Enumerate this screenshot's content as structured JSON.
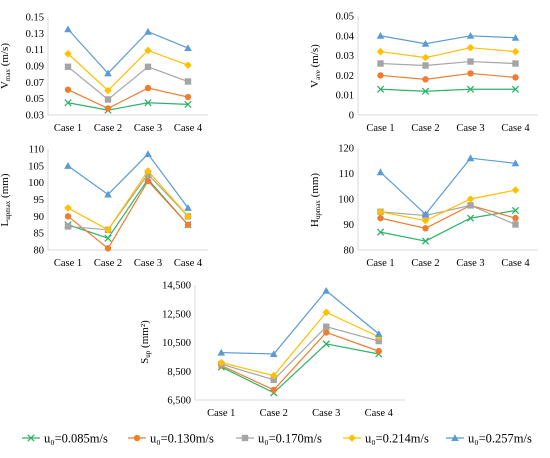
{
  "legend": [
    {
      "label": "u₀=0.085m/s",
      "color": "#2db36a",
      "marker": "x"
    },
    {
      "label": "u₀=0.130m/s",
      "color": "#ed7d31",
      "marker": "circle"
    },
    {
      "label": "u₀=0.170m/s",
      "color": "#a5a5a5",
      "marker": "square"
    },
    {
      "label": "u₀=0.214m/s",
      "color": "#ffc000",
      "marker": "diamond"
    },
    {
      "label": "u₀=0.257m/s",
      "color": "#5b9bd5",
      "marker": "triangle"
    }
  ],
  "chart_data": [
    {
      "type": "line",
      "ylabel": "Vmax (m/s)",
      "ylabel_main": "V",
      "ylabel_sub": "max",
      "ylabel_unit": " (m/s)",
      "categories": [
        "Case 1",
        "Case 2",
        "Case 3",
        "Case 4"
      ],
      "ylim": [
        0.03,
        0.15
      ],
      "yticks": [
        "0.03",
        "0.05",
        "0.07",
        "0.09",
        "0.11",
        "0.13",
        "0.15"
      ],
      "series": [
        {
          "name": "u₀=0.085m/s",
          "values": [
            0.045,
            0.036,
            0.045,
            0.043
          ]
        },
        {
          "name": "u₀=0.130m/s",
          "values": [
            0.061,
            0.038,
            0.063,
            0.052
          ]
        },
        {
          "name": "u₀=0.170m/s",
          "values": [
            0.089,
            0.049,
            0.089,
            0.071
          ]
        },
        {
          "name": "u₀=0.214m/s",
          "values": [
            0.105,
            0.06,
            0.109,
            0.091
          ]
        },
        {
          "name": "u₀=0.257m/s",
          "values": [
            0.135,
            0.081,
            0.132,
            0.112
          ]
        }
      ]
    },
    {
      "type": "line",
      "ylabel": "Vave (m/s)",
      "ylabel_main": "V",
      "ylabel_sub": "ave",
      "ylabel_unit": " (m/s)",
      "categories": [
        "Case 1",
        "Case 2",
        "Case 3",
        "Case 4"
      ],
      "ylim": [
        0,
        0.05
      ],
      "yticks": [
        "0",
        "0.01",
        "0.02",
        "0.03",
        "0.04",
        "0.05"
      ],
      "series": [
        {
          "name": "u₀=0.085m/s",
          "values": [
            0.013,
            0.012,
            0.013,
            0.013
          ]
        },
        {
          "name": "u₀=0.130m/s",
          "values": [
            0.02,
            0.018,
            0.021,
            0.019
          ]
        },
        {
          "name": "u₀=0.170m/s",
          "values": [
            0.026,
            0.025,
            0.027,
            0.026
          ]
        },
        {
          "name": "u₀=0.214m/s",
          "values": [
            0.032,
            0.029,
            0.034,
            0.032
          ]
        },
        {
          "name": "u₀=0.257m/s",
          "values": [
            0.04,
            0.036,
            0.04,
            0.039
          ]
        }
      ]
    },
    {
      "type": "line",
      "ylabel": "Lupmax (mm)",
      "ylabel_main": "L",
      "ylabel_sub": "upmax",
      "ylabel_unit": " (mm)",
      "categories": [
        "Case 1",
        "Case 2",
        "Case 3",
        "Case 4"
      ],
      "ylim": [
        80,
        110
      ],
      "yticks": [
        "80",
        "85",
        "90",
        "95",
        "100",
        "105",
        "110"
      ],
      "series": [
        {
          "name": "u₀=0.085m/s",
          "values": [
            87.5,
            83.5,
            101,
            87.5
          ]
        },
        {
          "name": "u₀=0.130m/s",
          "values": [
            90,
            80.5,
            100.5,
            87.5
          ]
        },
        {
          "name": "u₀=0.170m/s",
          "values": [
            87,
            86,
            102.5,
            90
          ]
        },
        {
          "name": "u₀=0.214m/s",
          "values": [
            92.5,
            86,
            103.5,
            90
          ]
        },
        {
          "name": "u₀=0.257m/s",
          "values": [
            105,
            96.5,
            108.5,
            92.5
          ]
        }
      ]
    },
    {
      "type": "line",
      "ylabel": "Hupmax (mm)",
      "ylabel_main": "H",
      "ylabel_sub": "upmax",
      "ylabel_unit": " (mm)",
      "categories": [
        "Case 1",
        "Case 2",
        "Case 3",
        "Case 4"
      ],
      "ylim": [
        80,
        120
      ],
      "yticks": [
        "80",
        "90",
        "100",
        "110",
        "120"
      ],
      "series": [
        {
          "name": "u₀=0.085m/s",
          "values": [
            87,
            83.5,
            92.5,
            95.5
          ]
        },
        {
          "name": "u₀=0.130m/s",
          "values": [
            92.5,
            88.5,
            97.5,
            92.5
          ]
        },
        {
          "name": "u₀=0.170m/s",
          "values": [
            95,
            93.5,
            97.5,
            90
          ]
        },
        {
          "name": "u₀=0.214m/s",
          "values": [
            95,
            91.5,
            100,
            103.5
          ]
        },
        {
          "name": "u₀=0.257m/s",
          "values": [
            110.5,
            94,
            116,
            114
          ]
        }
      ]
    },
    {
      "type": "line",
      "ylabel": "Sup (mm²)",
      "ylabel_main": "S",
      "ylabel_sub": "up",
      "ylabel_unit": " (mm²)",
      "categories": [
        "Case 1",
        "Case 2",
        "Case 3",
        "Case 4"
      ],
      "ylim": [
        6500,
        14500
      ],
      "yticks": [
        "6,500",
        "8,500",
        "10,500",
        "12,500",
        "14,500"
      ],
      "series": [
        {
          "name": "u₀=0.085m/s",
          "values": [
            8800,
            7000,
            10400,
            9700
          ]
        },
        {
          "name": "u₀=0.130m/s",
          "values": [
            8900,
            7200,
            11200,
            9900
          ]
        },
        {
          "name": "u₀=0.170m/s",
          "values": [
            9000,
            7900,
            11600,
            10600
          ]
        },
        {
          "name": "u₀=0.214m/s",
          "values": [
            9100,
            8200,
            12600,
            10900
          ]
        },
        {
          "name": "u₀=0.257m/s",
          "values": [
            9800,
            9700,
            14100,
            11100
          ]
        }
      ]
    }
  ]
}
